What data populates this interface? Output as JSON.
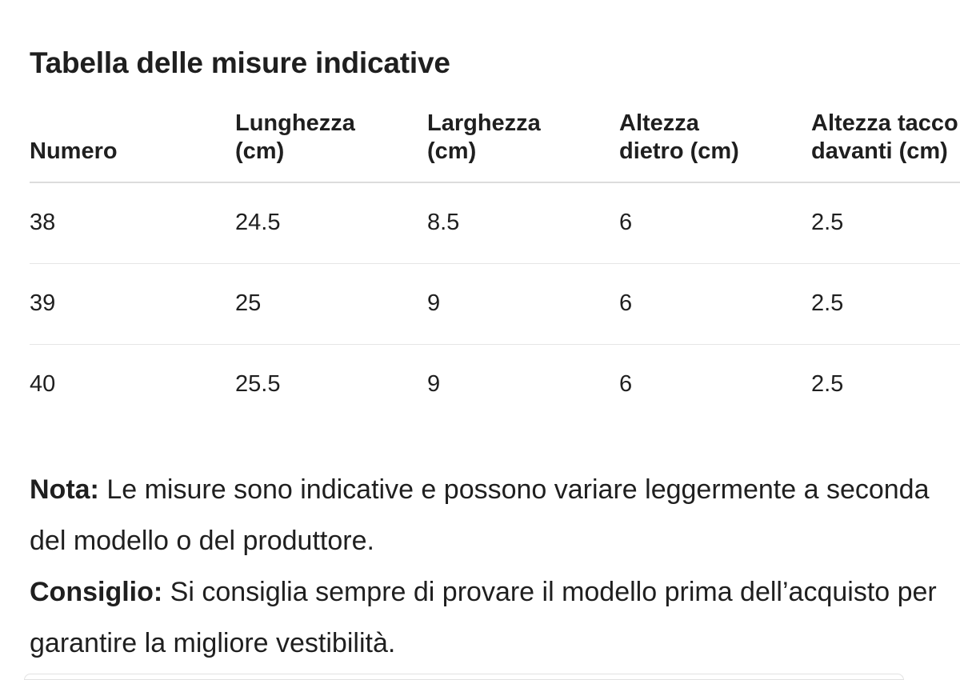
{
  "title": "Tabella delle misure indicative",
  "table": {
    "headers": [
      "Numero",
      "Lunghezza\n(cm)",
      "Larghezza\n(cm)",
      "Altezza\ndietro (cm)",
      "Altezza tacco\ndavanti (cm)"
    ],
    "rows": [
      [
        "38",
        "24.5",
        "8.5",
        "6",
        "2.5"
      ],
      [
        "39",
        "25",
        "9",
        "6",
        "2.5"
      ],
      [
        "40",
        "25.5",
        "9",
        "6",
        "2.5"
      ]
    ]
  },
  "notes": {
    "nota_label": "Nota:",
    "nota_text": " Le misure sono indicative e possono variare leggermente a seconda del modello o del produttore.",
    "consiglio_label": "Consiglio:",
    "consiglio_text": " Si consiglia sempre di provare il modello prima dell’acquisto per garantire la migliore vestibilità."
  }
}
